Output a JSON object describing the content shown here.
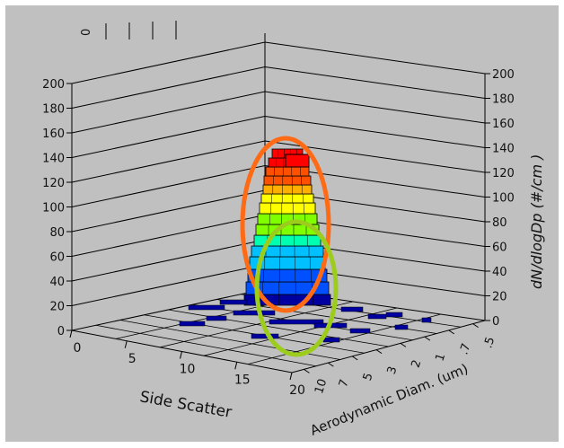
{
  "chart_data": {
    "type": "bar3d",
    "z_axis": {
      "label": "dN/dlogDp  (#/cm  )",
      "ticks": [
        0,
        20,
        40,
        60,
        80,
        100,
        120,
        140,
        160,
        180,
        200
      ],
      "range": [
        0,
        200
      ]
    },
    "x_axis": {
      "label": "Side Scatter",
      "ticks": [
        "0",
        "5",
        "10",
        "15",
        "20"
      ]
    },
    "y_axis": {
      "label": "Aerodynamic Diam. (um)",
      "ticks": [
        "10",
        "7",
        "5",
        "3",
        "2",
        "1",
        ".7",
        ".5"
      ]
    },
    "top_stray_ticks": [
      "0"
    ],
    "colors": {
      "background": "#c0c0c0",
      "outer_frame": "#ffffff",
      "grid": "#000000",
      "orange_annotation": "#ff6a14",
      "green_annotation": "#9ccc1c"
    },
    "annotations": [
      {
        "shape": "ellipse",
        "color": "orange",
        "region": "tall peak"
      },
      {
        "shape": "ellipse",
        "color": "green",
        "region": "cyan-blue base"
      }
    ],
    "peak": {
      "max_value": 127,
      "position": "center"
    },
    "colormap": [
      "#0000a0",
      "#0050ff",
      "#00c0ff",
      "#00ffb0",
      "#80ff00",
      "#ffff00",
      "#ffb000",
      "#ff5000",
      "#ff0000"
    ]
  }
}
